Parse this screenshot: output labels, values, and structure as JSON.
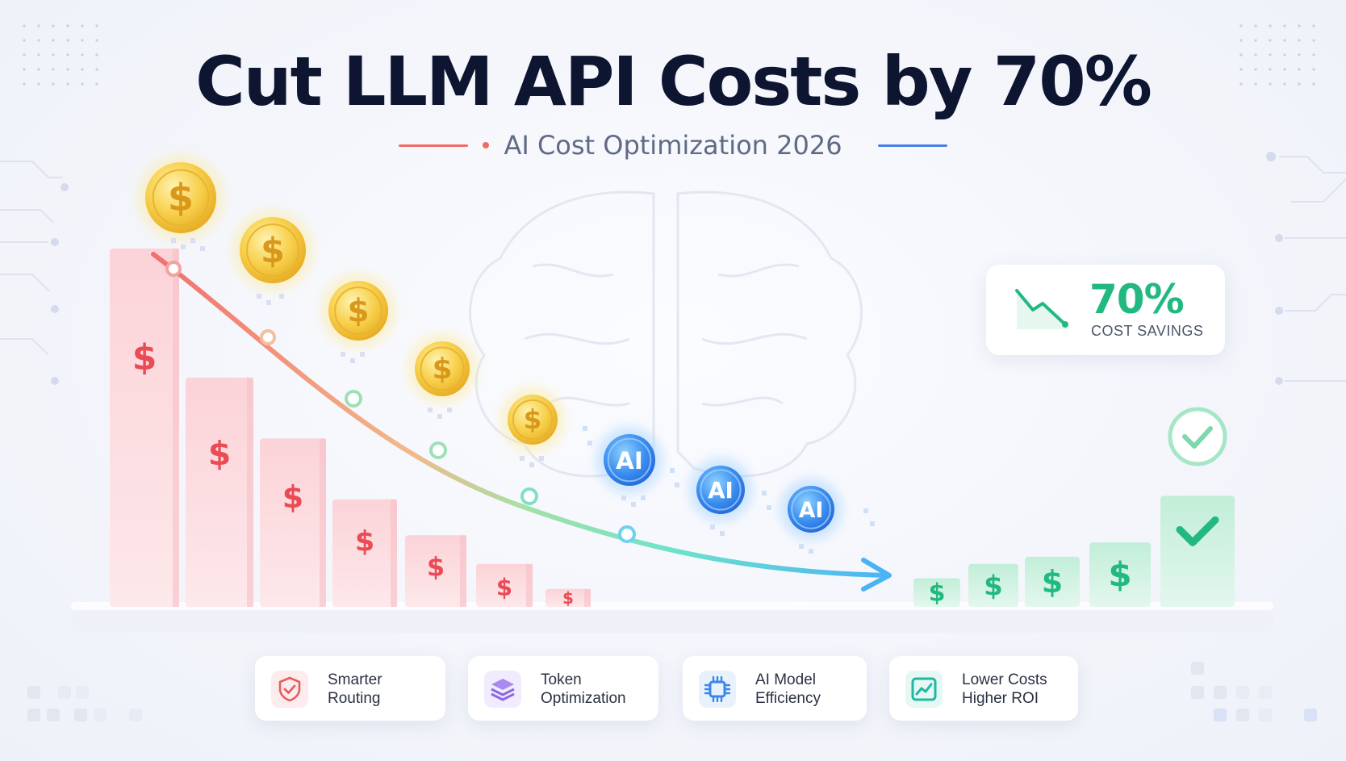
{
  "title": "Cut LLM API Costs by 70%",
  "subtitle": "AI Cost Optimization 2026",
  "colors": {
    "title": "#0d1530",
    "red_accent": "#ef6b66",
    "blue_accent": "#4a7fe6",
    "green_accent": "#22b980",
    "cost_bar": "#f9c9cf",
    "saving_bar": "#c6efdc"
  },
  "savings": {
    "value": "70%",
    "label": "COST SAVINGS",
    "icon": "trend-down-icon"
  },
  "chart": {
    "bar_symbol": "$",
    "coin_symbol": "$",
    "ai_label": "AI",
    "high_cost_bars": [
      1.0,
      0.64,
      0.47,
      0.3,
      0.2,
      0.12,
      0.05
    ],
    "low_cost_bars": [
      0.08,
      0.12,
      0.14,
      0.18,
      0.31
    ],
    "trend": "decreasing",
    "check_icon": "check-icon"
  },
  "features": [
    {
      "line1": "Smarter",
      "line2": "Routing",
      "icon": "shield-check-icon"
    },
    {
      "line1": "Token",
      "line2": "Optimization",
      "icon": "layers-icon"
    },
    {
      "line1": "AI Model",
      "line2": "Efficiency",
      "icon": "chip-icon"
    },
    {
      "line1": "Lower Costs",
      "line2": "Higher ROI",
      "icon": "trend-up-chart-icon"
    }
  ]
}
